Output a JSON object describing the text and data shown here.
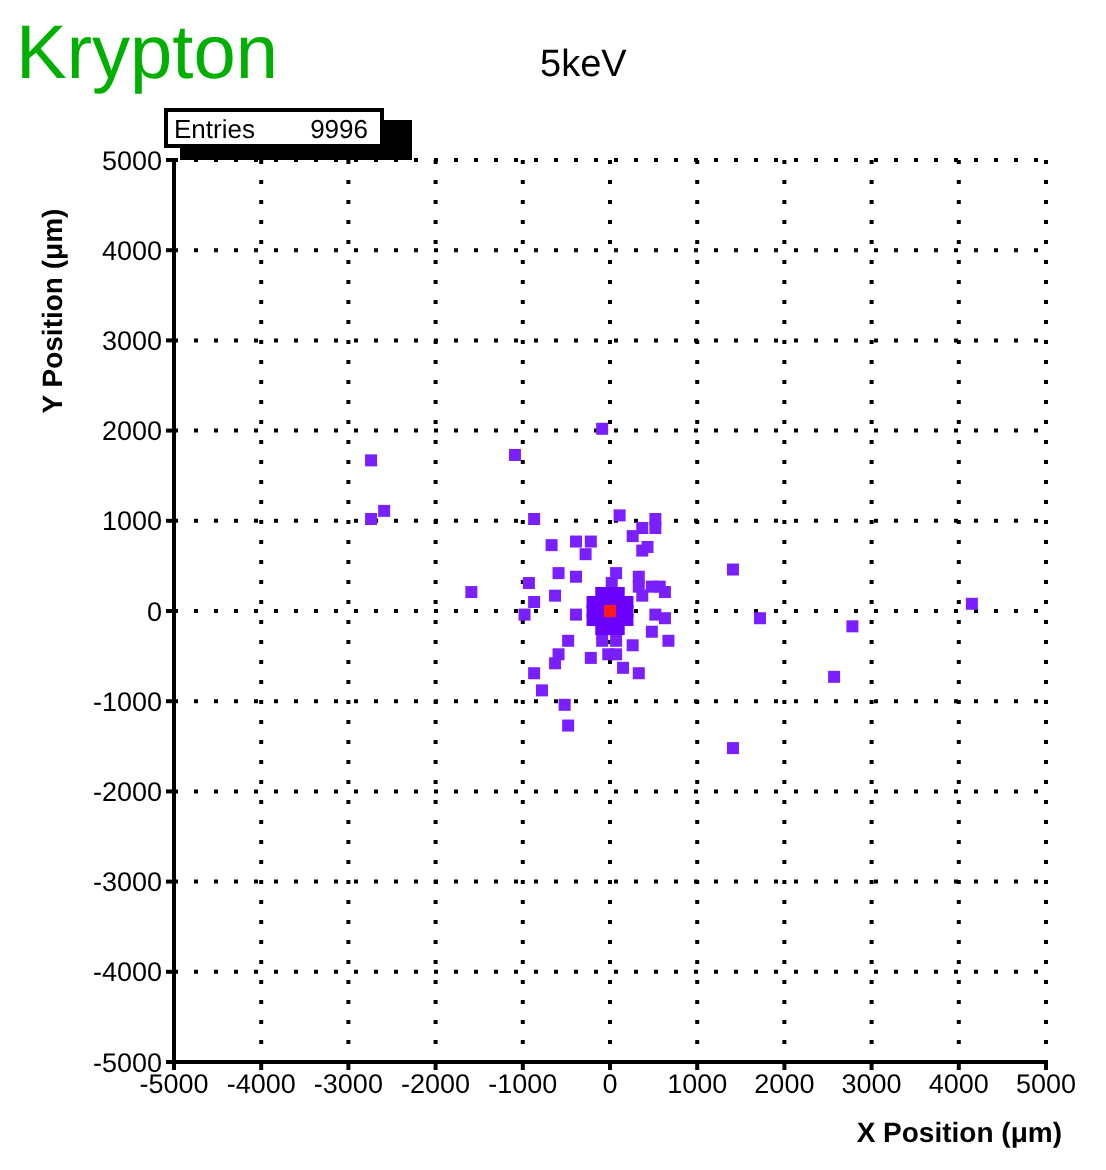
{
  "chart_data": {
    "type": "scatter",
    "title": "Krypton",
    "subtitle": "5keV",
    "xlabel": "X Position (μm)",
    "ylabel": "Y Position (μm)",
    "annotations": [
      "Entries",
      "9996"
    ],
    "xlim": [
      -5000,
      5000
    ],
    "ylim": [
      -5000,
      5000
    ],
    "xticks": [
      -5000,
      -4000,
      -3000,
      -2000,
      -1000,
      0,
      1000,
      2000,
      3000,
      4000,
      5000
    ],
    "yticks": [
      -5000,
      -4000,
      -3000,
      -2000,
      -1000,
      0,
      1000,
      2000,
      3000,
      4000,
      5000
    ],
    "grid": true,
    "marker": "square",
    "legend": false,
    "series": [
      {
        "x": [
          -2740,
          -1090,
          -2590,
          -2740,
          -90,
          110,
          -870,
          520,
          520,
          370,
          260,
          430,
          370,
          -390,
          -220,
          -670,
          -280,
          -590,
          -390,
          -930,
          -1590,
          -870,
          -630,
          1410,
          1720,
          -980,
          -390,
          330,
          70,
          20,
          330,
          480,
          570,
          630,
          370,
          520,
          630,
          480,
          670,
          -480,
          -90,
          70,
          260,
          -20,
          70,
          -590,
          -630,
          -220,
          150,
          330,
          -870,
          -780,
          -520,
          -480,
          1410,
          2570,
          2780,
          4150,
          -100,
          0,
          100,
          -200,
          -100,
          0,
          100,
          200,
          -200,
          -100,
          100,
          200,
          -200,
          -100,
          0,
          100,
          200,
          -100,
          0,
          100,
          0
        ],
        "values": [
          1670,
          1730,
          1110,
          1020,
          2020,
          1060,
          1020,
          1020,
          920,
          920,
          830,
          710,
          670,
          770,
          770,
          730,
          630,
          420,
          380,
          310,
          210,
          100,
          170,
          460,
          -80,
          -40,
          -40,
          380,
          420,
          310,
          270,
          270,
          270,
          210,
          170,
          -40,
          -80,
          -230,
          -330,
          -330,
          -330,
          -330,
          -380,
          -480,
          -480,
          -480,
          -580,
          -520,
          -630,
          -690,
          -690,
          -880,
          -1040,
          -1270,
          -1520,
          -730,
          -170,
          80,
          200,
          200,
          200,
          100,
          100,
          100,
          100,
          100,
          0,
          0,
          0,
          0,
          -100,
          -100,
          -100,
          -100,
          -100,
          -200,
          -200,
          -200,
          0
        ],
        "colors": [
          "#7a1fff",
          "#7a1fff",
          "#7a1fff",
          "#7a1fff",
          "#7a1fff",
          "#7a1fff",
          "#7a1fff",
          "#7a1fff",
          "#7a1fff",
          "#7a1fff",
          "#7a1fff",
          "#7a1fff",
          "#7a1fff",
          "#7a1fff",
          "#7a1fff",
          "#7a1fff",
          "#7a1fff",
          "#7a1fff",
          "#7a1fff",
          "#7a1fff",
          "#7a1fff",
          "#7a1fff",
          "#7a1fff",
          "#7a1fff",
          "#7a1fff",
          "#7a1fff",
          "#7a1fff",
          "#7a1fff",
          "#7a1fff",
          "#7a1fff",
          "#7a1fff",
          "#7a1fff",
          "#7a1fff",
          "#7a1fff",
          "#7a1fff",
          "#7a1fff",
          "#7a1fff",
          "#7a1fff",
          "#7a1fff",
          "#7a1fff",
          "#7a1fff",
          "#7a1fff",
          "#7a1fff",
          "#7a1fff",
          "#7a1fff",
          "#7a1fff",
          "#7a1fff",
          "#7a1fff",
          "#7a1fff",
          "#7a1fff",
          "#7a1fff",
          "#7a1fff",
          "#7a1fff",
          "#7a1fff",
          "#7a1fff",
          "#7a1fff",
          "#7a1fff",
          "#7a1fff",
          "#6a00ff",
          "#6a00ff",
          "#6a00ff",
          "#6a00ff",
          "#6a00ff",
          "#6a00ff",
          "#6a00ff",
          "#6a00ff",
          "#6a00ff",
          "#6a00ff",
          "#6a00ff",
          "#6a00ff",
          "#6a00ff",
          "#6a00ff",
          "#6a00ff",
          "#6a00ff",
          "#6a00ff",
          "#6a00ff",
          "#6a00ff",
          "#6a00ff",
          "#ff1a1a"
        ]
      }
    ]
  }
}
